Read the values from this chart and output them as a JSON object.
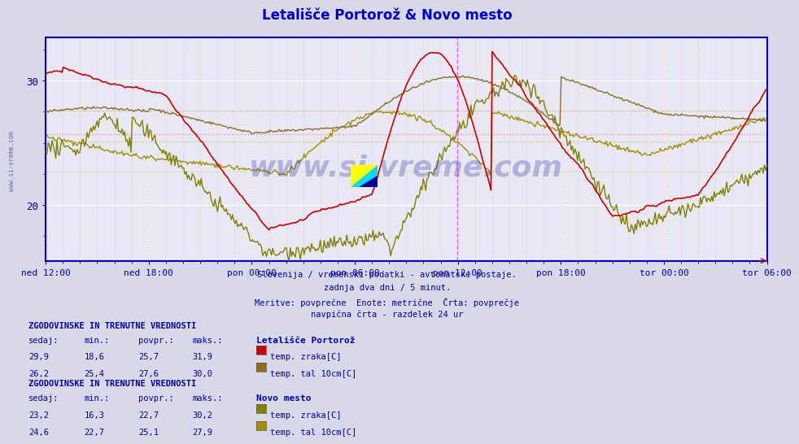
{
  "title": "Letališče Portorož & Novo mesto",
  "title_color": "#0000cc",
  "bg_color": "#d8d8e8",
  "plot_bg_color": "#e8e8f4",
  "grid_color_white": "#ffffff",
  "grid_color_dotted": "#cccccc",
  "axis_color": "#0000cc",
  "text_color": "#0000aa",
  "ylim": [
    15.5,
    33.5
  ],
  "ytick_vals": [
    20,
    30
  ],
  "xlabel_ticks": [
    "ned 12:00",
    "ned 18:00",
    "pon 00:00",
    "pon 06:00",
    "pon 12:00",
    "pon 18:00",
    "tor 00:00",
    "tor 06:00"
  ],
  "n_points": 576,
  "portoroz_air_color": "#cc0000",
  "portoroz_ground_color": "#887020",
  "novomesto_air_color": "#808000",
  "novomesto_ground_color": "#a09000",
  "hline_portoroz_air": 25.7,
  "hline_portoroz_ground": 27.6,
  "hline_novomesto_air": 22.7,
  "hline_novomesto_ground": 25.1,
  "watermark": "www.si-vreme.com",
  "footer_lines": [
    "Slovenija / vremenski podatki - avtomatske postaje.",
    "zadnja dva dni / 5 minut.",
    "Meritve: povprečne  Enote: metrične  Črta: povprečje",
    "navpična črta - razdelek 24 ur"
  ],
  "legend1_title": "Letališče Portorož",
  "legend1_rows": [
    {
      "sedaj": "29,9",
      "min": "18,6",
      "povpr": "25,7",
      "maks": "31,9",
      "label": "temp. zraka[C]",
      "color": "#cc0000"
    },
    {
      "sedaj": "26,2",
      "min": "25,4",
      "povpr": "27,6",
      "maks": "30,0",
      "label": "temp. tal 10cm[C]",
      "color": "#887020"
    }
  ],
  "legend2_title": "Novo mesto",
  "legend2_rows": [
    {
      "sedaj": "23,2",
      "min": "16,3",
      "povpr": "22,7",
      "maks": "30,2",
      "label": "temp. zraka[C]",
      "color": "#808000"
    },
    {
      "sedaj": "24,6",
      "min": "22,7",
      "povpr": "25,1",
      "maks": "27,9",
      "label": "temp. tal 10cm[C]",
      "color": "#a09000"
    }
  ]
}
